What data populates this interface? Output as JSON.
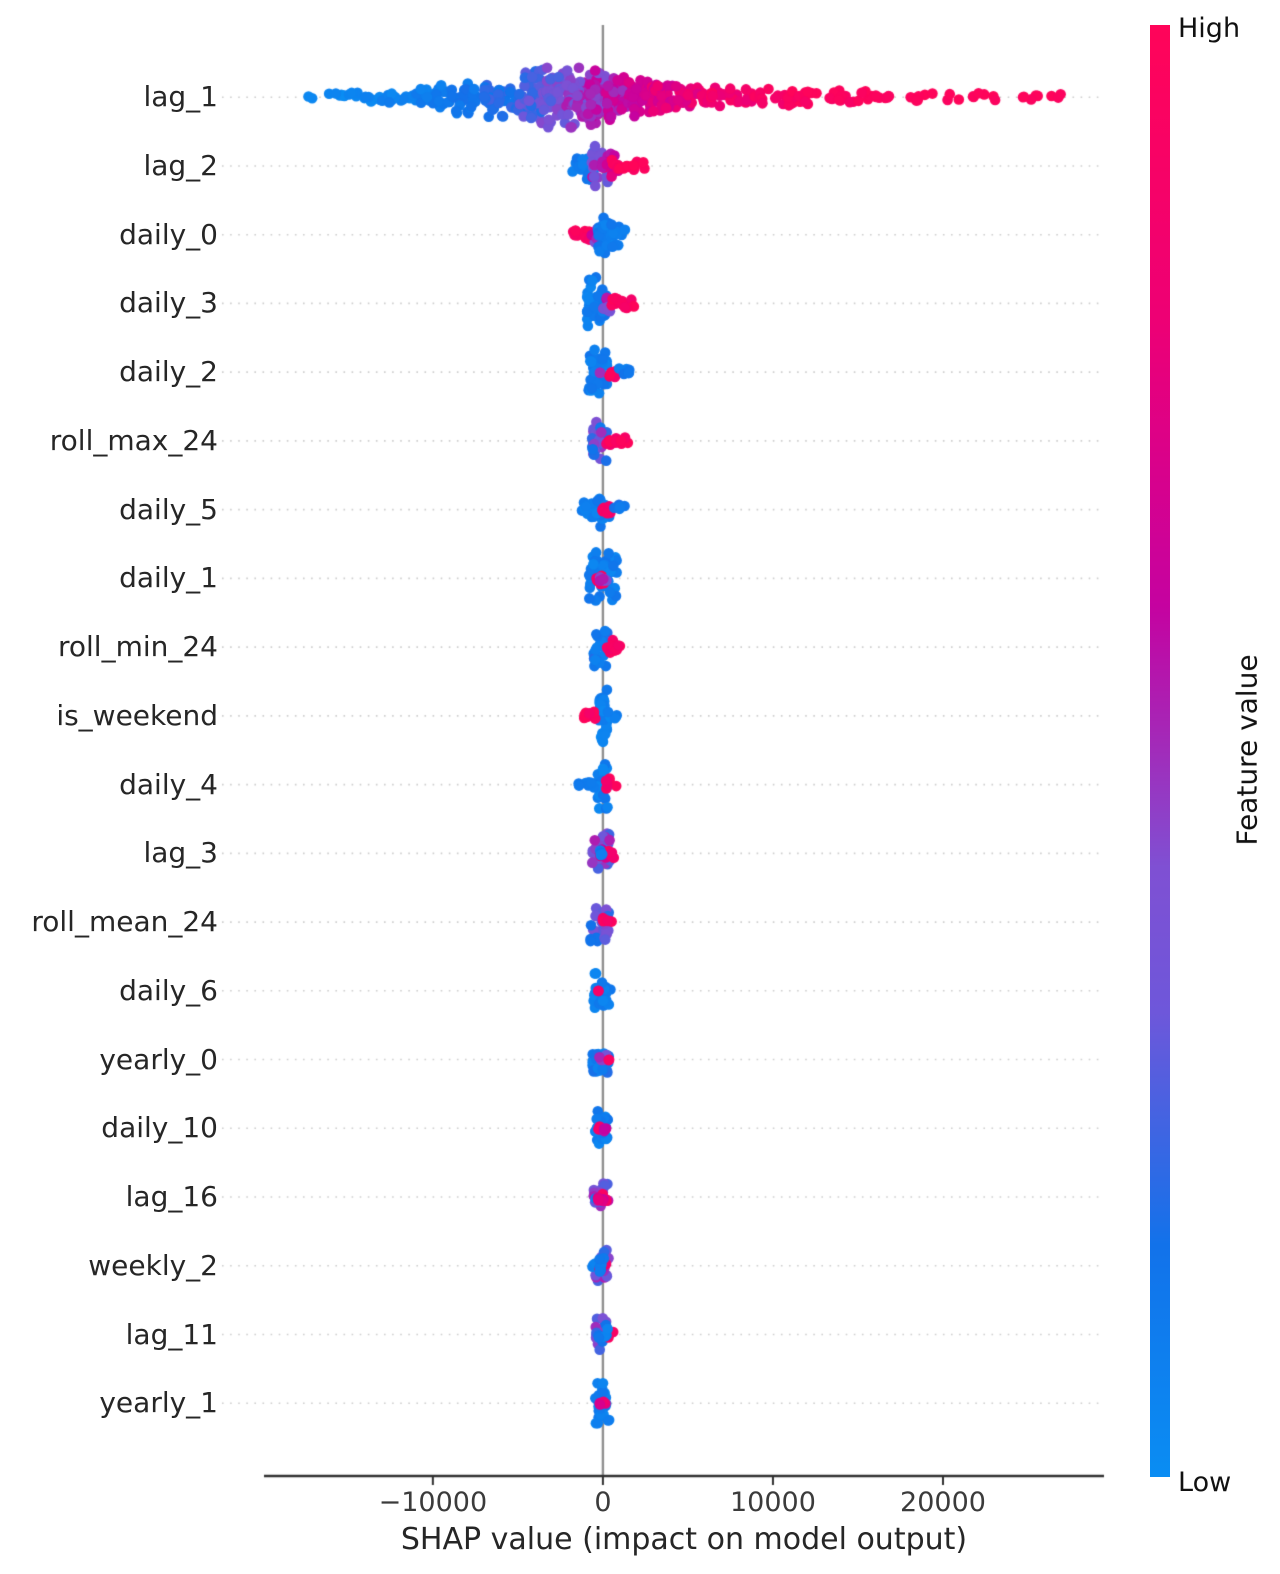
{
  "chart_data": {
    "type": "scatter",
    "subtype": "shap-beeswarm-summary",
    "title": "",
    "xlabel": "SHAP value (impact on model output)",
    "ylabel": "",
    "xlim": [
      -22400,
      29350
    ],
    "grid": "dotted-horizontal-per-feature-row",
    "zero_line": true,
    "x_ticks": [
      {
        "value": -10000,
        "label": "−10000"
      },
      {
        "value": 0,
        "label": "0"
      },
      {
        "value": 10000,
        "label": "10000"
      },
      {
        "value": 20000,
        "label": "20000"
      }
    ],
    "colorbar": {
      "high_label": "High",
      "low_label": "Low",
      "title": "Feature value",
      "position": "right",
      "stops": [
        [
          0.0,
          "#0A8DF3"
        ],
        [
          0.16,
          "#1272EA"
        ],
        [
          0.32,
          "#6E57DA"
        ],
        [
          0.42,
          "#7F50D3"
        ],
        [
          0.5,
          "#A12CBA"
        ],
        [
          0.6,
          "#C502A0"
        ],
        [
          0.8,
          "#EE0074"
        ],
        [
          1.0,
          "#FF0459"
        ]
      ]
    },
    "features": [
      {
        "name": "lag_1",
        "shap_range": [
          -17400,
          27000
        ],
        "clusters": [
          [
            -17400,
            -16900,
            2,
            3,
            0.0,
            0.05
          ],
          [
            -16500,
            -15000,
            6,
            4,
            0.0,
            0.06
          ],
          [
            -15000,
            -13000,
            11,
            6,
            0.02,
            0.08
          ],
          [
            -13000,
            -11000,
            16,
            8,
            0.03,
            0.1
          ],
          [
            -11000,
            -9000,
            22,
            12,
            0.05,
            0.14
          ],
          [
            -9000,
            -7000,
            30,
            16,
            0.08,
            0.18
          ],
          [
            -7000,
            -5200,
            40,
            21,
            0.12,
            0.25
          ],
          [
            -5200,
            -3600,
            50,
            26,
            0.18,
            0.34
          ],
          [
            -3600,
            -2200,
            56,
            30,
            0.25,
            0.45
          ],
          [
            -2200,
            -900,
            56,
            30,
            0.32,
            0.55
          ],
          [
            -900,
            200,
            52,
            28,
            0.4,
            0.62
          ],
          [
            200,
            1400,
            46,
            24,
            0.48,
            0.68
          ],
          [
            1400,
            2800,
            40,
            19,
            0.55,
            0.75
          ],
          [
            2800,
            4300,
            32,
            14,
            0.62,
            0.82
          ],
          [
            4300,
            6300,
            28,
            11,
            0.7,
            0.88
          ],
          [
            6300,
            8800,
            26,
            10,
            0.78,
            0.94
          ],
          [
            8800,
            11800,
            24,
            9,
            0.85,
            1.0
          ],
          [
            11800,
            14800,
            18,
            7,
            0.9,
            1.0
          ],
          [
            14800,
            17800,
            13,
            6,
            0.93,
            1.0
          ],
          [
            17800,
            20800,
            9,
            5,
            0.95,
            1.0
          ],
          [
            20800,
            23500,
            7,
            4,
            0.95,
            1.0
          ],
          [
            24600,
            27000,
            8,
            4,
            0.95,
            1.0
          ]
        ]
      },
      {
        "name": "lag_2",
        "shap_range": [
          -1800,
          2500
        ],
        "clusters": [
          [
            -1800,
            -300,
            26,
            14,
            0.04,
            0.16
          ],
          [
            -700,
            500,
            22,
            20,
            0.3,
            0.6
          ],
          [
            -100,
            900,
            10,
            12,
            0.55,
            0.75
          ],
          [
            500,
            1500,
            10,
            7,
            0.85,
            1.0
          ],
          [
            1400,
            2500,
            8,
            6,
            0.9,
            1.0
          ]
        ]
      },
      {
        "name": "daily_0",
        "shap_range": [
          -1750,
          1350
        ],
        "clusters": [
          [
            -1750,
            -600,
            13,
            8,
            0.88,
            1.0
          ],
          [
            -700,
            -100,
            8,
            8,
            0.4,
            0.65
          ],
          [
            -300,
            500,
            30,
            20,
            0.03,
            0.15
          ],
          [
            300,
            1350,
            14,
            12,
            0.03,
            0.15
          ]
        ]
      },
      {
        "name": "daily_3",
        "shap_range": [
          -950,
          1900
        ],
        "clusters": [
          [
            -950,
            200,
            40,
            26,
            0.03,
            0.15
          ],
          [
            -100,
            600,
            10,
            10,
            0.35,
            0.6
          ],
          [
            400,
            1300,
            10,
            8,
            0.85,
            1.0
          ],
          [
            1100,
            1900,
            6,
            6,
            0.88,
            1.0
          ]
        ]
      },
      {
        "name": "daily_2",
        "shap_range": [
          -850,
          1600
        ],
        "clusters": [
          [
            -850,
            350,
            38,
            24,
            0.03,
            0.15
          ],
          [
            -350,
            -150,
            2,
            3,
            0.45,
            0.55
          ],
          [
            350,
            1000,
            7,
            6,
            0.85,
            1.0
          ],
          [
            800,
            1600,
            6,
            5,
            0.05,
            0.2
          ]
        ]
      },
      {
        "name": "roll_max_24",
        "shap_range": [
          -650,
          1500
        ],
        "clusters": [
          [
            -650,
            250,
            30,
            20,
            0.05,
            0.5
          ],
          [
            100,
            900,
            10,
            7,
            0.85,
            1.0
          ],
          [
            700,
            1500,
            5,
            5,
            0.88,
            1.0
          ]
        ]
      },
      {
        "name": "daily_5",
        "shap_range": [
          -1250,
          1400
        ],
        "clusters": [
          [
            -1250,
            400,
            34,
            17,
            0.03,
            0.15
          ],
          [
            -150,
            500,
            8,
            7,
            0.85,
            1.0
          ],
          [
            600,
            1400,
            5,
            5,
            0.05,
            0.18
          ]
        ]
      },
      {
        "name": "daily_1",
        "shap_range": [
          -850,
          900
        ],
        "clusters": [
          [
            -850,
            850,
            44,
            26,
            0.03,
            0.15
          ],
          [
            -500,
            100,
            6,
            6,
            0.85,
            1.0
          ],
          [
            -300,
            300,
            6,
            8,
            0.35,
            0.6
          ]
        ]
      },
      {
        "name": "roll_min_24",
        "shap_range": [
          -550,
          1100
        ],
        "clusters": [
          [
            -550,
            300,
            26,
            19,
            0.05,
            0.2
          ],
          [
            150,
            700,
            9,
            7,
            0.85,
            1.0
          ],
          [
            600,
            1100,
            4,
            4,
            0.88,
            1.0
          ]
        ]
      },
      {
        "name": "is_weekend",
        "shap_range": [
          -1150,
          900
        ],
        "clusters": [
          [
            -250,
            250,
            38,
            26,
            0.02,
            0.12
          ],
          [
            -1150,
            -350,
            8,
            6,
            0.88,
            1.0
          ],
          [
            300,
            900,
            6,
            4,
            0.02,
            0.12
          ]
        ]
      },
      {
        "name": "daily_4",
        "shap_range": [
          -1450,
          800
        ],
        "clusters": [
          [
            -300,
            300,
            34,
            24,
            0.03,
            0.15
          ],
          [
            -1450,
            -300,
            10,
            5,
            0.03,
            0.15
          ],
          [
            100,
            800,
            7,
            6,
            0.85,
            1.0
          ]
        ]
      },
      {
        "name": "lag_3",
        "shap_range": [
          -650,
          950
        ],
        "clusters": [
          [
            -650,
            450,
            28,
            20,
            0.2,
            0.55
          ],
          [
            -200,
            400,
            8,
            8,
            0.55,
            0.8
          ],
          [
            300,
            950,
            5,
            5,
            0.8,
            0.95
          ],
          [
            -400,
            100,
            4,
            6,
            0.02,
            0.15
          ]
        ]
      },
      {
        "name": "roll_mean_24",
        "shap_range": [
          -750,
          550
        ],
        "clusters": [
          [
            -750,
            350,
            26,
            19,
            0.1,
            0.45
          ],
          [
            -150,
            550,
            6,
            5,
            0.85,
            1.0
          ]
        ]
      },
      {
        "name": "daily_6",
        "shap_range": [
          -550,
          450
        ],
        "clusters": [
          [
            -550,
            450,
            30,
            20,
            0.03,
            0.15
          ],
          [
            -300,
            -100,
            2,
            3,
            0.85,
            0.95
          ]
        ]
      },
      {
        "name": "yearly_0",
        "shap_range": [
          -650,
          450
        ],
        "clusters": [
          [
            -650,
            350,
            28,
            19,
            0.05,
            0.2
          ],
          [
            -300,
            200,
            5,
            6,
            0.35,
            0.6
          ],
          [
            250,
            450,
            2,
            3,
            0.85,
            0.95
          ]
        ]
      },
      {
        "name": "daily_10",
        "shap_range": [
          -450,
          350
        ],
        "clusters": [
          [
            -450,
            350,
            26,
            17,
            0.03,
            0.15
          ],
          [
            -400,
            -100,
            3,
            4,
            0.85,
            1.0
          ],
          [
            -100,
            200,
            3,
            4,
            0.45,
            0.65
          ]
        ]
      },
      {
        "name": "lag_16",
        "shap_range": [
          -550,
          350
        ],
        "clusters": [
          [
            -550,
            350,
            22,
            16,
            0.25,
            0.6
          ],
          [
            -150,
            250,
            6,
            5,
            0.85,
            1.0
          ],
          [
            -550,
            -350,
            2,
            3,
            0.03,
            0.12
          ],
          [
            -300,
            100,
            5,
            6,
            0.6,
            0.8
          ]
        ]
      },
      {
        "name": "weekly_2",
        "shap_range": [
          -650,
          350
        ],
        "clusters": [
          [
            -450,
            350,
            22,
            16,
            0.2,
            0.55
          ],
          [
            -650,
            -400,
            3,
            3,
            0.03,
            0.12
          ],
          [
            -200,
            200,
            5,
            5,
            0.8,
            1.0
          ],
          [
            -300,
            300,
            6,
            8,
            0.03,
            0.15
          ]
        ]
      },
      {
        "name": "lag_11",
        "shap_range": [
          -450,
          750
        ],
        "clusters": [
          [
            -450,
            350,
            26,
            17,
            0.15,
            0.5
          ],
          [
            300,
            750,
            3,
            4,
            0.88,
            1.0
          ],
          [
            -300,
            300,
            6,
            8,
            0.03,
            0.15
          ]
        ]
      },
      {
        "name": "yearly_1",
        "shap_range": [
          -450,
          400
        ],
        "clusters": [
          [
            -450,
            400,
            30,
            20,
            0.03,
            0.15
          ],
          [
            -250,
            150,
            4,
            5,
            0.65,
            0.85
          ]
        ]
      }
    ]
  },
  "labels": {
    "xlabel": "SHAP value (impact on model output)",
    "colorbar_high": "High",
    "colorbar_low": "Low",
    "colorbar_title": "Feature value"
  }
}
